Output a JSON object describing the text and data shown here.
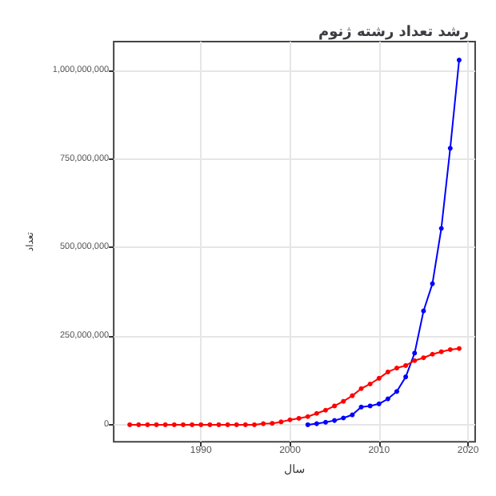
{
  "chart_data": {
    "type": "line",
    "title": "رشد تعداد رشته ژنوم",
    "xlabel": "سال",
    "ylabel": "تعداد",
    "xlim": [
      1980.2,
      2020.8
    ],
    "xticks": [
      1990,
      2000,
      2010,
      2020
    ],
    "ylim": [
      -48000000,
      1081000000
    ],
    "yticks": [
      {
        "value": 0,
        "label": "0"
      },
      {
        "value": 250000000,
        "label": "250,000,000"
      },
      {
        "value": 500000000,
        "label": "500,000,000"
      },
      {
        "value": 750000000,
        "label": "750,000,000"
      },
      {
        "value": 1000000000,
        "label": "1,000,000,000"
      }
    ],
    "grid": true,
    "marker": "circle",
    "line_style": "solid",
    "series": [
      {
        "color": "#ff0000",
        "x": [
          1982,
          1983,
          1984,
          1985,
          1986,
          1987,
          1988,
          1989,
          1990,
          1991,
          1992,
          1993,
          1994,
          1995,
          1996,
          1997,
          1998,
          1999,
          2000,
          2001,
          2002,
          2003,
          2004,
          2005,
          2006,
          2007,
          2008,
          2009,
          2010,
          2011,
          2012,
          2013,
          2014,
          2015,
          2016,
          2017,
          2018,
          2019
        ],
        "values": [
          0,
          0,
          0,
          0,
          0,
          0,
          0,
          0,
          0,
          0,
          0,
          0,
          0,
          0,
          0,
          3000000,
          4000000,
          8000000,
          14000000,
          18000000,
          23000000,
          32000000,
          41000000,
          53000000,
          66000000,
          82000000,
          102000000,
          115000000,
          131000000,
          149000000,
          160000000,
          167000000,
          181000000,
          189000000,
          199000000,
          206000000,
          212000000,
          215000000
        ]
      },
      {
        "color": "#0000ff",
        "x": [
          2002,
          2003,
          2004,
          2005,
          2006,
          2007,
          2008,
          2009,
          2010,
          2011,
          2012,
          2013,
          2014,
          2015,
          2016,
          2017,
          2018,
          2019
        ],
        "values": [
          0,
          3000000,
          7000000,
          12000000,
          19000000,
          28000000,
          50000000,
          53000000,
          59000000,
          73000000,
          94000000,
          135000000,
          202000000,
          321000000,
          398000000,
          554000000,
          780000000,
          1029000000
        ]
      }
    ]
  }
}
